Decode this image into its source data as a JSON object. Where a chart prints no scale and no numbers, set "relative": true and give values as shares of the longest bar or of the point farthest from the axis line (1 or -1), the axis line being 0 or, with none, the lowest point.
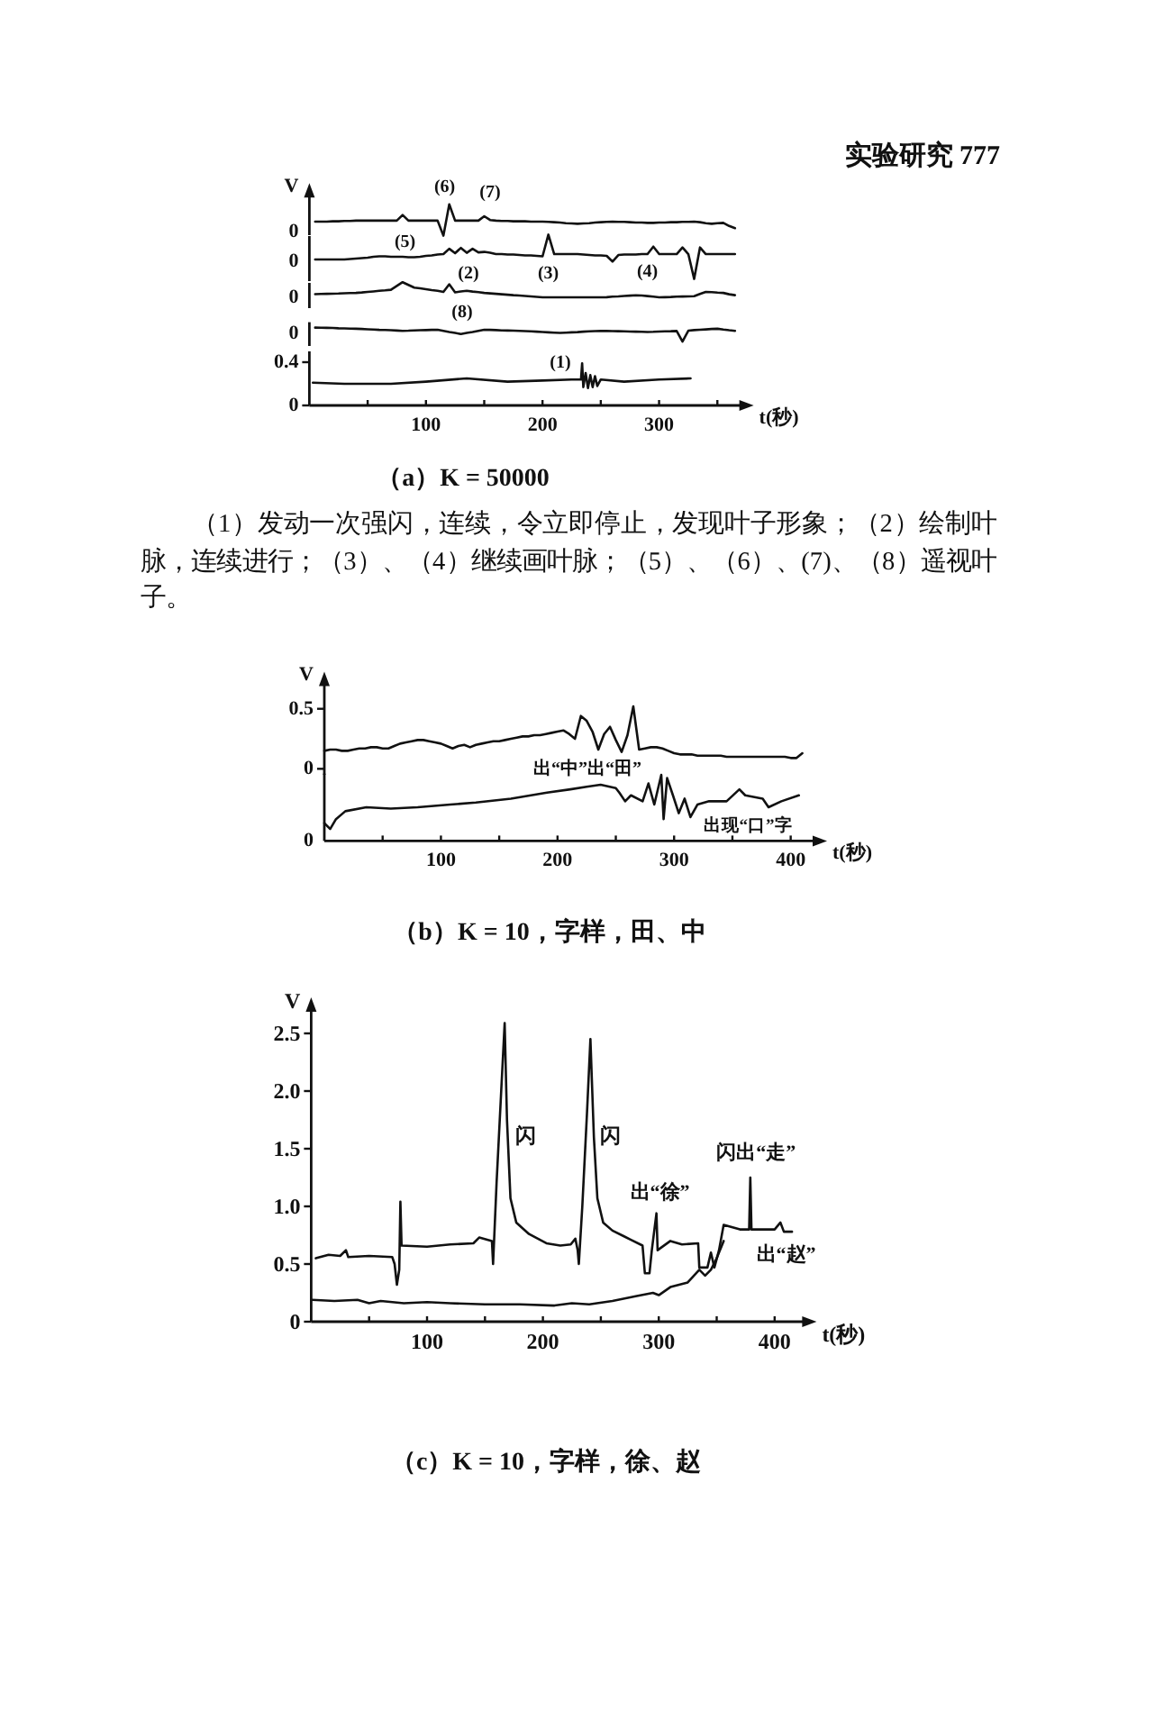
{
  "chart_data": [
    {
      "type": "line",
      "ylabel": "V",
      "relative": true,
      "tick_labels": false,
      "categories": [
        null,
        null,
        null,
        null,
        null,
        null,
        null,
        null,
        null,
        null,
        null,
        null,
        null,
        null,
        null,
        null,
        null,
        null,
        null,
        null,
        null,
        null,
        null,
        null,
        null,
        null,
        null,
        null,
        null,
        null,
        null,
        null,
        null,
        null,
        null,
        null,
        null,
        null,
        null,
        null,
        null,
        null,
        null,
        null,
        null,
        null,
        null,
        null,
        null,
        null,
        null,
        null,
        null,
        null,
        null,
        null,
        null,
        null,
        null,
        null,
        null,
        null,
        null,
        null,
        null,
        null,
        null,
        null,
        null,
        null,
        null,
        null,
        null
      ],
      "series": [
        {
          "color": "#111111",
          "values": [
            0.45,
            0.45,
            0.45,
            0.46,
            0.46,
            0.47,
            0.47,
            0.48,
            0.48,
            0.48,
            0.48,
            0.48,
            0.48,
            0.48,
            0.48,
            0.66,
            0.48,
            0.48,
            0.48,
            0.48,
            0.48,
            0.48,
            0,
            1,
            0.48,
            0.48,
            0.48,
            0.48,
            0.48,
            0.62,
            0.5,
            0.48,
            0.47,
            0.47,
            0.46,
            0.46,
            0.46,
            0.45,
            0.45,
            0.45,
            0.44,
            0.43,
            0.42,
            0.4,
            0.39,
            0.38,
            0.39,
            0.4,
            0.42,
            0.43,
            0.44,
            0.45,
            0.44,
            0.44,
            0.43,
            0.42,
            0.42,
            0.41,
            0.41,
            0.42,
            0.42,
            0.43,
            0.43,
            0.44,
            0.44,
            0.45,
            0.43,
            0.4,
            0.38,
            0.4,
            0.41,
            0.31,
            0.24
          ]
        }
      ],
      "annotations": [
        "实验研究  777",
        "0",
        "(5)",
        "(6)",
        "(7)"
      ]
    },
    {
      "type": "line",
      "relative": true,
      "tick_labels": false,
      "categories": [
        null,
        null,
        null,
        null,
        null,
        null,
        null,
        null,
        null,
        null,
        null,
        null,
        null,
        null,
        null,
        null,
        null,
        null,
        null,
        null,
        null,
        null,
        null,
        null,
        null,
        null,
        null,
        null,
        null,
        null,
        null,
        null,
        null,
        null,
        null,
        null,
        null,
        null,
        null,
        null,
        null,
        null,
        null,
        null,
        null,
        null,
        null,
        null,
        null,
        null,
        null,
        null,
        null,
        null,
        null,
        null,
        null,
        null,
        null,
        null,
        null,
        null,
        null,
        null,
        null,
        null,
        null,
        null,
        null,
        null,
        null,
        null,
        null
      ],
      "series": [
        {
          "color": "#111111",
          "values": [
            0.44,
            0.44,
            0.44,
            0.44,
            0.44,
            0.44,
            0.45,
            0.46,
            0.47,
            0.48,
            0.5,
            0.51,
            0.51,
            0.5,
            0.5,
            0.5,
            0.49,
            0.49,
            0.5,
            0.52,
            0.53,
            0.55,
            0.56,
            0.68,
            0.58,
            0.7,
            0.59,
            0.68,
            0.6,
            0.61,
            0.59,
            0.56,
            0.56,
            0.55,
            0.55,
            0.54,
            0.53,
            0.53,
            0.52,
            0.51,
            1,
            0.56,
            0.56,
            0.56,
            0.56,
            0.56,
            0.55,
            0.54,
            0.53,
            0.53,
            0.52,
            0.39,
            0.54,
            0.55,
            0.55,
            0.55,
            0.56,
            0.56,
            0.73,
            0.56,
            0.56,
            0.56,
            0.56,
            0.71,
            0.56,
            0,
            0.71,
            0.56,
            0.56,
            0.56,
            0.56,
            0.56,
            0.56
          ]
        }
      ],
      "annotations": [
        "0",
        "(2)",
        "(3)",
        "(4)"
      ]
    },
    {
      "type": "line",
      "relative": true,
      "tick_labels": false,
      "categories": [
        null,
        null,
        null,
        null,
        null,
        null,
        null,
        null,
        null,
        null,
        null,
        null,
        null,
        null,
        null,
        null,
        null,
        null,
        null,
        null,
        null,
        null,
        null,
        null,
        null,
        null,
        null,
        null,
        null,
        null,
        null,
        null,
        null,
        null,
        null,
        null,
        null,
        null,
        null,
        null,
        null,
        null,
        null,
        null,
        null,
        null,
        null,
        null,
        null,
        null,
        null,
        null,
        null,
        null,
        null,
        null,
        null,
        null,
        null,
        null,
        null,
        null,
        null,
        null,
        null,
        null,
        null,
        null,
        null,
        null,
        null,
        null,
        null
      ],
      "series": [
        {
          "color": "#111111",
          "values": [
            0.21,
            0.22,
            0.23,
            0.24,
            0.25,
            0.27,
            0.28,
            0.29,
            0.32,
            0.36,
            0.39,
            0.43,
            0.46,
            0.5,
            0.75,
            1,
            0.82,
            0.64,
            0.59,
            0.54,
            0.48,
            0.43,
            0.36,
            0.86,
            0.33,
            0.39,
            0.43,
            0.38,
            0.34,
            0.29,
            0.26,
            0.23,
            0.2,
            0.17,
            0.14,
            0.12,
            0.09,
            0.06,
            0.03,
            0,
            0,
            0,
            0,
            0,
            0,
            0,
            0,
            0,
            0,
            0,
            0.01,
            0.04,
            0.06,
            0.09,
            0.11,
            0.13,
            0.12,
            0.08,
            0.04,
            0,
            0.01,
            0.02,
            0.04,
            0.05,
            0.06,
            0.07,
            0.22,
            0.36,
            0.34,
            0.31,
            0.29,
            0.2,
            0.14
          ]
        }
      ],
      "annotations": [
        "0",
        "(8)"
      ]
    },
    {
      "type": "line",
      "relative": true,
      "tick_labels": false,
      "categories": [
        null,
        null,
        null,
        null,
        null,
        null,
        null,
        null,
        null,
        null,
        null,
        null,
        null,
        null,
        null,
        null,
        null,
        null,
        null,
        null,
        null,
        null,
        null,
        null,
        null,
        null,
        null,
        null,
        null,
        null,
        null,
        null,
        null,
        null,
        null,
        null,
        null,
        null,
        null,
        null,
        null,
        null,
        null,
        null,
        null,
        null,
        null,
        null,
        null,
        null,
        null,
        null,
        null,
        null,
        null,
        null,
        null,
        null,
        null,
        null,
        null,
        null,
        null,
        null,
        null,
        null,
        null,
        null,
        null,
        null,
        null,
        null,
        null
      ],
      "series": [
        {
          "color": "#111111",
          "values": [
            1,
            0.99,
            0.98,
            0.97,
            0.95,
            0.94,
            0.93,
            0.92,
            0.9,
            0.88,
            0.86,
            0.84,
            0.83,
            0.81,
            0.79,
            0.77,
            0.78,
            0.8,
            0.81,
            0.82,
            0.84,
            0.85,
            0.77,
            0.69,
            0.62,
            0.54,
            0.62,
            0.69,
            0.77,
            0.85,
            0.84,
            0.82,
            0.8,
            0.79,
            0.78,
            0.77,
            0.75,
            0.73,
            0.71,
            0.69,
            0.66,
            0.64,
            0.62,
            0.64,
            0.66,
            0.68,
            0.71,
            0.73,
            0.75,
            0.77,
            0.76,
            0.75,
            0.74,
            0.73,
            0.72,
            0.71,
            0.7,
            0.69,
            0.7,
            0.72,
            0.73,
            0.74,
            0.76,
            0,
            0.78,
            0.82,
            0.85,
            0.87,
            0.9,
            0.92,
            0.86,
            0.81,
            0.77
          ]
        }
      ],
      "annotations": [
        "0"
      ]
    },
    {
      "type": "line",
      "title": "（a）K = 50000",
      "xlabel": "t(秒)",
      "xlim": [
        0,
        375
      ],
      "ylim": [
        0,
        0.5
      ],
      "xticks": [
        {
          "value": 50,
          "label": null
        },
        100,
        {
          "value": 150,
          "label": null
        },
        200,
        {
          "value": 250,
          "label": null
        },
        300,
        {
          "value": 350,
          "label": null
        }
      ],
      "yticks": [
        0,
        0.4
      ],
      "series": [
        {
          "color": "#111111",
          "x": [
            3,
            30,
            70,
            100,
            135,
            170,
            200,
            225,
            233,
            234,
            235,
            237,
            239,
            241,
            243,
            245,
            247,
            250,
            270,
            300,
            327
          ],
          "values": [
            0.21,
            0.2,
            0.2,
            0.22,
            0.25,
            0.22,
            0.23,
            0.24,
            0.24,
            0.39,
            0.17,
            0.3,
            0.16,
            0.28,
            0.17,
            0.27,
            0.18,
            0.24,
            0.22,
            0.24,
            0.25
          ]
        }
      ],
      "annotations": [
        "(1)",
        "（1）发动一次强闪，连续，令立即停止，发现叶子形象；（2）绘制叶脉，连续进行；（3）、（4）继续画叶脉；（5）、（6）、(7)、（8）遥视叶子。"
      ]
    },
    {
      "type": "line",
      "ylabel": "V",
      "ylim": [
        -0.05,
        0.75
      ],
      "yticks": [
        0,
        0.5
      ],
      "tick_labels": "y",
      "categories": [
        null,
        null,
        null,
        null,
        null,
        null,
        null,
        null,
        null,
        null,
        null,
        null,
        null,
        null,
        null,
        null,
        null,
        null,
        null,
        null,
        null,
        null,
        null,
        null,
        null,
        null,
        null,
        null,
        null,
        null,
        null,
        null,
        null,
        null,
        null,
        null,
        null,
        null,
        null,
        null,
        null,
        null,
        null,
        null,
        null,
        null,
        null,
        null,
        null,
        null,
        null,
        null,
        null,
        null,
        null,
        null,
        null,
        null,
        null,
        null,
        null,
        null,
        null,
        null,
        null,
        null,
        null,
        null,
        null,
        null,
        null,
        null,
        null,
        null,
        null,
        null,
        null,
        null,
        null,
        null,
        null,
        null,
        null
      ],
      "series": [
        {
          "color": "#111111",
          "values": [
            0.15,
            0.16,
            0.16,
            0.15,
            0.15,
            0.16,
            0.17,
            0.17,
            0.18,
            0.18,
            0.17,
            0.17,
            0.19,
            0.21,
            0.22,
            0.23,
            0.24,
            0.24,
            0.23,
            0.22,
            0.21,
            0.19,
            0.17,
            0.19,
            0.2,
            0.18,
            0.2,
            0.21,
            0.22,
            0.23,
            0.23,
            0.24,
            0.25,
            0.26,
            0.27,
            0.27,
            0.28,
            0.28,
            0.29,
            0.3,
            0.31,
            0.32,
            0.29,
            0.25,
            0.44,
            0.4,
            0.31,
            0.16,
            0.29,
            0.35,
            0.24,
            0.14,
            0.28,
            0.52,
            0.16,
            0.17,
            0.18,
            0.18,
            0.17,
            0.15,
            0.13,
            0.12,
            0.12,
            0.12,
            0.11,
            0.11,
            0.11,
            0.11,
            0.11,
            0.1,
            0.1,
            0.1,
            0.1,
            0.1,
            0.1,
            0.1,
            0.1,
            0.1,
            0.1,
            0.1,
            0.09,
            0.09,
            0.13
          ]
        }
      ],
      "annotations": [
        "出“中”出“田”"
      ]
    },
    {
      "type": "line",
      "title": "（b）K = 10，字样，田、中",
      "xlabel": "t(秒)",
      "xlim": [
        0,
        425
      ],
      "relative": true,
      "tick_labels": "x",
      "xticks": [
        {
          "value": 50,
          "label": null
        },
        100,
        {
          "value": 150,
          "label": null
        },
        200,
        {
          "value": 250,
          "label": null
        },
        300,
        {
          "value": 350,
          "label": null
        },
        400
      ],
      "series": [
        {
          "color": "#111111",
          "x": [
            0,
            5,
            10,
            18,
            36,
            57,
            80,
            108,
            130,
            160,
            191,
            211,
            225,
            237,
            250,
            253,
            258,
            263,
            273,
            278,
            283,
            289,
            291,
            294,
            299,
            304,
            309,
            314,
            320,
            330,
            345,
            356,
            361,
            376,
            381,
            392,
            407
          ],
          "values": [
            0.27,
            0.18,
            0.33,
            0.45,
            0.51,
            0.49,
            0.51,
            0.55,
            0.58,
            0.64,
            0.73,
            0.78,
            0.82,
            0.85,
            0.8,
            0.73,
            0.6,
            0.69,
            0.6,
            0.87,
            0.55,
            1,
            0.33,
            0.95,
            0.69,
            0.42,
            0.64,
            0.36,
            0.55,
            0.6,
            0.6,
            0.78,
            0.69,
            0.64,
            0.51,
            0.6,
            0.69
          ]
        }
      ],
      "annotations": [
        "0",
        "出现“口”字"
      ]
    },
    {
      "type": "line",
      "title": "（c）K = 10，字样，徐、赵",
      "xlabel": "t(秒)",
      "ylabel": "V",
      "xlim": [
        0,
        430
      ],
      "ylim": [
        0,
        2.75
      ],
      "xticks": [
        {
          "value": 50,
          "label": null
        },
        100,
        {
          "value": 150,
          "label": null
        },
        200,
        {
          "value": 250,
          "label": null
        },
        300,
        {
          "value": 350,
          "label": null
        },
        400
      ],
      "yticks": [
        0,
        0.5,
        {
          "value": 1,
          "label": "1.0"
        },
        1.5,
        {
          "value": 2,
          "label": "2.0"
        },
        2.5
      ],
      "series": [
        {
          "color": "#111111",
          "x": [
            4,
            15,
            25,
            30,
            32,
            50,
            70,
            72,
            74,
            76,
            77,
            78,
            100,
            120,
            140,
            145,
            156,
            157,
            160,
            164,
            167,
            169,
            172,
            177,
            188,
            203,
            215,
            224,
            228,
            230,
            231,
            234,
            238,
            241,
            244,
            247,
            252,
            260,
            270,
            276,
            286,
            288,
            292,
            294,
            298,
            299,
            310,
            320,
            334,
            335,
            342,
            345,
            348,
            352,
            356,
            370,
            378,
            379,
            380,
            400,
            405,
            408,
            415
          ],
          "values": [
            0.55,
            0.58,
            0.57,
            0.62,
            0.56,
            0.57,
            0.56,
            0.5,
            0.32,
            0.45,
            1.04,
            0.66,
            0.65,
            0.67,
            0.68,
            0.73,
            0.7,
            0.5,
            1.2,
            2.0,
            2.59,
            1.75,
            1.07,
            0.86,
            0.76,
            0.68,
            0.66,
            0.67,
            0.72,
            0.62,
            0.5,
            1.0,
            1.8,
            2.45,
            1.6,
            1.07,
            0.86,
            0.79,
            0.74,
            0.71,
            0.66,
            0.42,
            0.42,
            0.62,
            0.94,
            0.62,
            0.7,
            0.67,
            0.68,
            0.47,
            0.47,
            0.6,
            0.47,
            0.62,
            0.84,
            0.8,
            0.8,
            1.25,
            0.8,
            0.8,
            0.86,
            0.78,
            0.78
          ]
        },
        {
          "color": "#111111",
          "x": [
            1,
            20,
            40,
            50,
            60,
            80,
            100,
            120,
            150,
            180,
            210,
            225,
            240,
            260,
            280,
            295,
            300,
            310,
            325,
            335,
            340,
            345,
            350,
            356
          ],
          "values": [
            0.19,
            0.18,
            0.19,
            0.16,
            0.18,
            0.16,
            0.17,
            0.16,
            0.15,
            0.15,
            0.14,
            0.16,
            0.15,
            0.18,
            0.22,
            0.25,
            0.23,
            0.3,
            0.34,
            0.45,
            0.4,
            0.45,
            0.55,
            0.7
          ]
        }
      ],
      "annotations": [
        "闪",
        "闪",
        "出“徐”",
        "闪出“走”",
        "出“赵”"
      ]
    }
  ]
}
